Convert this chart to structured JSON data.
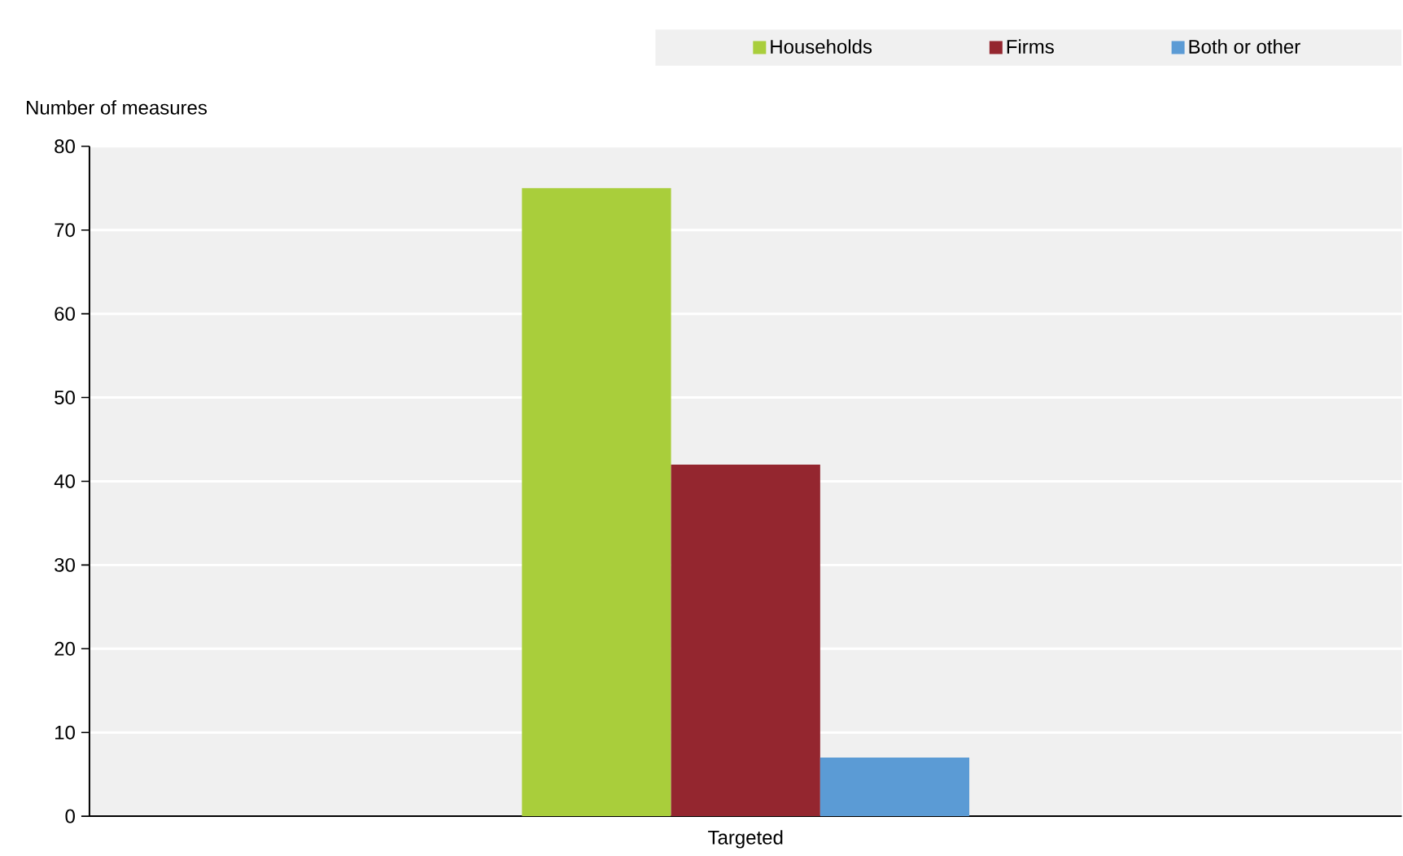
{
  "chart_data": {
    "type": "bar",
    "ylabel": "Number of measures",
    "categories": [
      "Targeted"
    ],
    "series": [
      {
        "name": "Households",
        "color": "#a9ce3b",
        "values": [
          75
        ]
      },
      {
        "name": "Firms",
        "color": "#94262f",
        "values": [
          42
        ]
      },
      {
        "name": "Both or other",
        "color": "#5b9bd5",
        "values": [
          7
        ]
      }
    ],
    "ylim": [
      0,
      80
    ],
    "yticks": [
      0,
      10,
      20,
      30,
      40,
      50,
      60,
      70,
      80
    ],
    "grid": "y",
    "legend": "top"
  }
}
